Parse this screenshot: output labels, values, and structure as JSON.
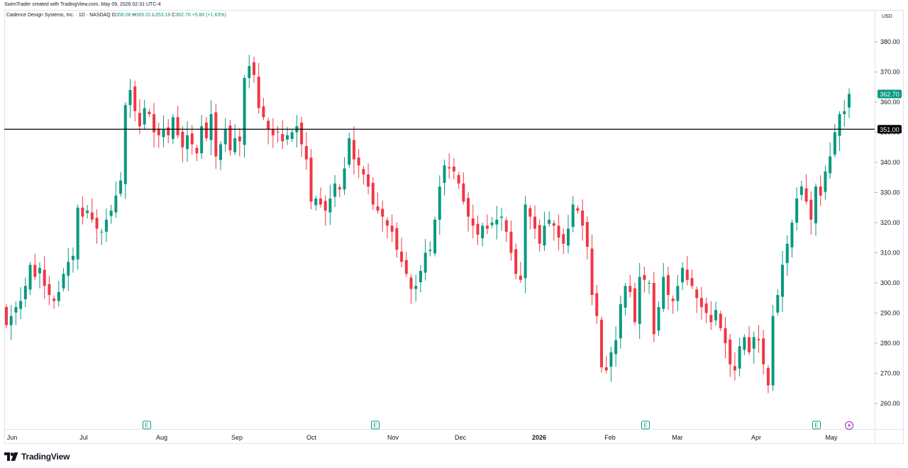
{
  "credit": "SwimTrader created with TradingView.com, May 09, 2026 02:31 UTC-4",
  "legend": {
    "symbol": "Cadence Design Systems, Inc. · 1D · NASDAQ",
    "o_label": "O",
    "o": "356.08",
    "h_label": "H",
    "h": "365.01",
    "l_label": "L",
    "l": "353.18",
    "c_label": "C",
    "c": "362.70",
    "change": "+5.80 (+1.63%)"
  },
  "currency": "USD",
  "logo_text": "TradingView",
  "colors": {
    "up": "#089981",
    "down": "#f23645",
    "line": "#000000",
    "grid": "#e0e3eb",
    "event": "#089981",
    "flash": "#9c27b0"
  },
  "chart_data": {
    "type": "candlestick",
    "y_axis": {
      "min": 255,
      "max": 385,
      "ticks": [
        260,
        270,
        280,
        290,
        300,
        310,
        320,
        330,
        340,
        350,
        360,
        370,
        380
      ]
    },
    "x_labels": [
      "Jun",
      "Jul",
      "Aug",
      "Sep",
      "Oct",
      "Nov",
      "Dec",
      "2026",
      "Feb",
      "Mar",
      "Apr",
      "May"
    ],
    "horizontal_line": {
      "value": 351.0,
      "label": "351.00"
    },
    "last_price": {
      "value": 362.7,
      "label": "362.70"
    },
    "earnings_markers": [
      "E",
      "E",
      "E",
      "E"
    ],
    "closes": [
      286,
      289,
      292,
      294,
      299,
      306,
      302,
      305,
      299,
      296,
      294,
      297,
      303,
      307,
      309,
      325,
      322,
      324,
      321,
      318,
      317,
      321,
      324,
      329,
      334,
      359,
      364,
      357,
      352,
      358,
      356,
      350,
      349,
      351,
      349,
      355,
      349,
      345,
      349,
      346,
      343,
      352,
      348,
      356,
      342,
      346,
      351,
      344,
      348,
      347,
      368,
      372,
      369,
      358,
      355,
      351,
      349,
      350,
      347,
      349,
      350,
      352,
      346,
      341,
      327,
      328,
      326,
      324,
      328,
      333,
      331,
      338,
      348,
      341,
      339,
      336,
      332,
      326,
      324,
      322,
      319,
      317,
      311,
      307,
      303,
      298,
      299,
      304,
      310,
      311,
      321,
      332,
      339,
      338,
      337,
      333,
      327,
      322,
      319,
      316,
      319,
      318,
      320,
      321,
      322,
      317,
      310,
      303,
      301,
      326,
      322,
      318,
      313,
      319,
      321,
      319,
      315,
      313,
      318,
      326,
      324,
      319,
      312,
      296,
      289,
      272,
      271,
      277,
      281,
      293,
      299,
      297,
      287,
      302,
      301,
      300,
      283,
      292,
      302,
      296,
      294,
      299,
      305,
      301,
      299,
      295,
      292,
      290,
      287,
      291,
      285,
      280,
      273,
      271,
      279,
      282,
      277,
      282,
      281,
      273,
      266,
      289,
      296,
      306,
      313,
      320,
      328,
      332,
      327,
      321,
      332,
      329,
      337,
      342,
      350,
      356,
      357,
      362.7
    ]
  }
}
